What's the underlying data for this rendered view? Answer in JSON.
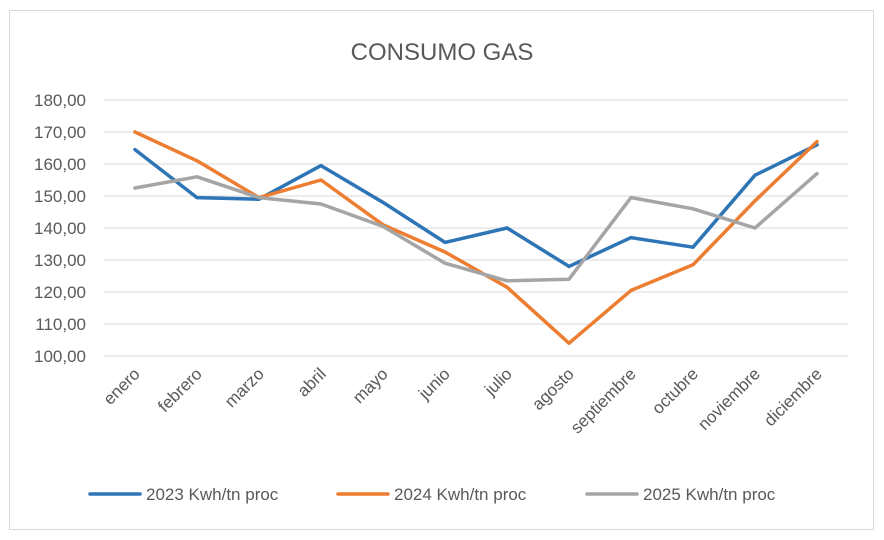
{
  "chart_data": {
    "type": "line",
    "title": "CONSUMO GAS",
    "xlabel": "",
    "ylabel": "",
    "ylim": [
      100,
      180
    ],
    "ytick_step": 10,
    "ytick_labels": [
      "100,00",
      "110,00",
      "120,00",
      "130,00",
      "140,00",
      "150,00",
      "160,00",
      "170,00",
      "180,00"
    ],
    "grid": true,
    "legend_position": "bottom",
    "categories": [
      "enero",
      "febrero",
      "marzo",
      "abril",
      "mayo",
      "junio",
      "julio",
      "agosto",
      "septiembre",
      "octubre",
      "noviembre",
      "diciembre"
    ],
    "series": [
      {
        "name": "2023 Kwh/tn proc",
        "color": "#2E75B6",
        "values": [
          164.5,
          149.5,
          149,
          159.5,
          148,
          135.5,
          140,
          128,
          137,
          134,
          156.5,
          166
        ]
      },
      {
        "name": "2024 Kwh/tn proc",
        "color": "#ED7D31",
        "values": [
          170,
          161,
          149.5,
          155,
          141,
          132.5,
          121.5,
          104,
          120.5,
          128.5,
          148.5,
          167
        ]
      },
      {
        "name": "2025 Kwh/tn proc",
        "color": "#A5A5A5",
        "values": [
          152.5,
          156,
          149.5,
          147.5,
          140.5,
          129,
          123.5,
          124,
          149.5,
          146,
          140,
          157
        ]
      }
    ]
  }
}
